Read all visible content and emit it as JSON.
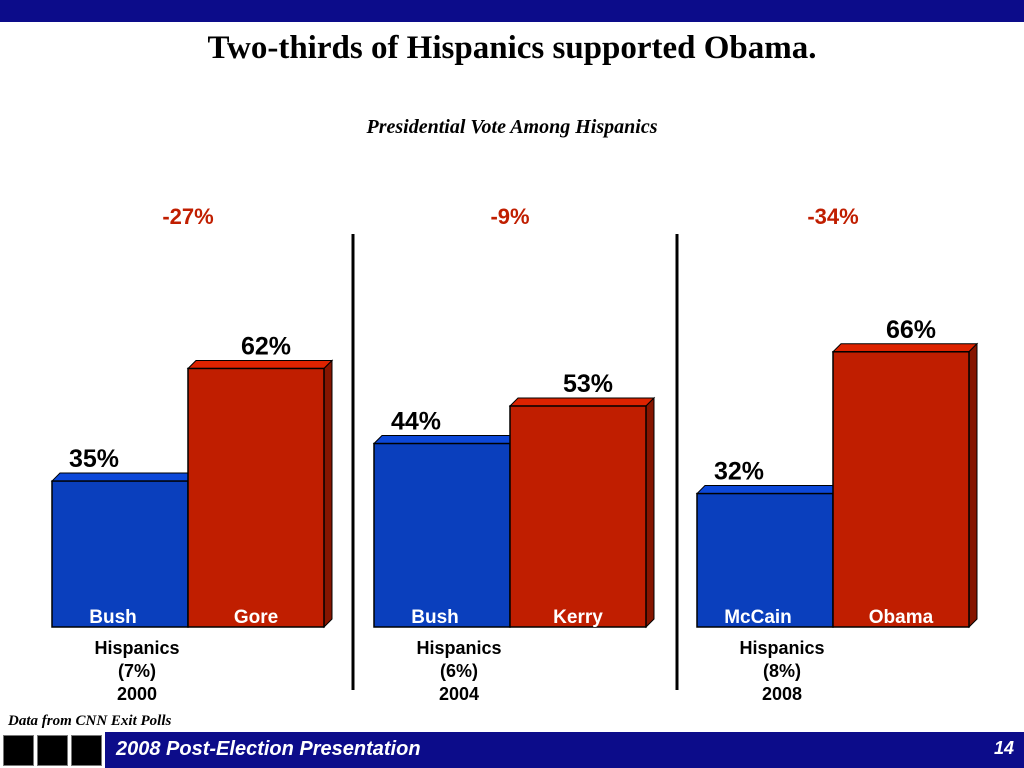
{
  "slide": {
    "title": "Two-thirds of Hispanics supported Obama.",
    "subtitle": "Presidential Vote Among Hispanics",
    "source": "Data from CNN Exit Polls",
    "footer": "2008 Post-Election Presentation",
    "page_number": "14"
  },
  "colors": {
    "rep": "#0a3fbd",
    "dem": "#c01e00",
    "margin_text": "#c01e00",
    "footer": "#0c0c8a"
  },
  "chart_data": {
    "type": "bar",
    "title": "Presidential Vote Among Hispanics",
    "ylim": [
      0,
      100
    ],
    "groups": [
      {
        "margin": "-27%",
        "line1": "Hispanics",
        "line2": "(7%)",
        "line3": "2000",
        "bars": [
          {
            "name": "Bush",
            "value": 35,
            "label": "35%",
            "party": "rep"
          },
          {
            "name": "Gore",
            "value": 62,
            "label": "62%",
            "party": "dem"
          }
        ]
      },
      {
        "margin": "-9%",
        "line1": "Hispanics",
        "line2": "(6%)",
        "line3": "2004",
        "bars": [
          {
            "name": "Bush",
            "value": 44,
            "label": "44%",
            "party": "rep"
          },
          {
            "name": "Kerry",
            "value": 53,
            "label": "53%",
            "party": "dem"
          }
        ]
      },
      {
        "margin": "-34%",
        "line1": "Hispanics",
        "line2": "(8%)",
        "line3": "2008",
        "bars": [
          {
            "name": "McCain",
            "value": 32,
            "label": "32%",
            "party": "rep"
          },
          {
            "name": "Obama",
            "value": 66,
            "label": "66%",
            "party": "dem"
          }
        ]
      }
    ]
  }
}
